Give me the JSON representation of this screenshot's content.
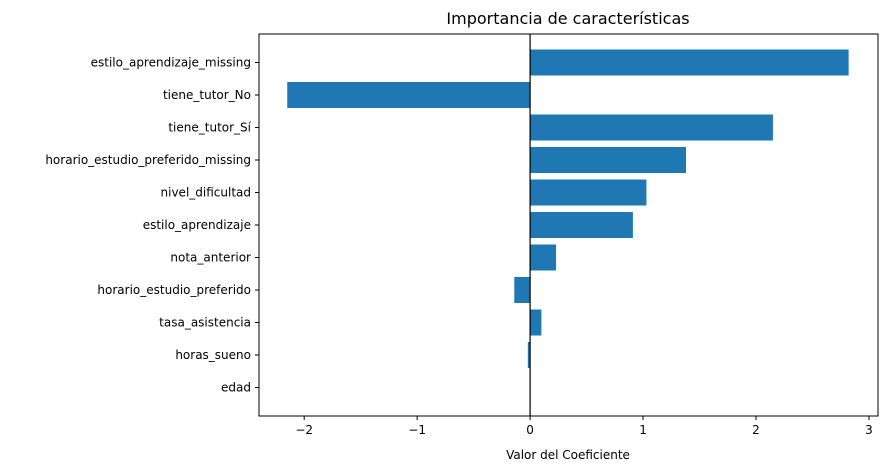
{
  "chart_data": {
    "type": "bar",
    "orientation": "horizontal",
    "title": "Importancia de características",
    "xlabel": "Valor del Coeficiente",
    "ylabel": "",
    "categories": [
      "estilo_aprendizaje_missing",
      "tiene_tutor_No",
      "tiene_tutor_Sí",
      "horario_estudio_preferido_missing",
      "nivel_dificultad",
      "estilo_aprendizaje",
      "nota_anterior",
      "horario_estudio_preferido",
      "tasa_asistencia",
      "horas_sueno",
      "edad"
    ],
    "values": [
      2.82,
      -2.15,
      2.15,
      1.38,
      1.03,
      0.91,
      0.23,
      -0.14,
      0.1,
      -0.02,
      0.0
    ],
    "xlim": [
      -2.4,
      3.08
    ],
    "xticks": [
      -2,
      -1,
      0,
      1,
      2,
      3
    ],
    "xtick_labels": [
      "−2",
      "−1",
      "0",
      "1",
      "2",
      "3"
    ],
    "bar_color": "#1f77b4",
    "grid": false,
    "zero_line": true
  }
}
